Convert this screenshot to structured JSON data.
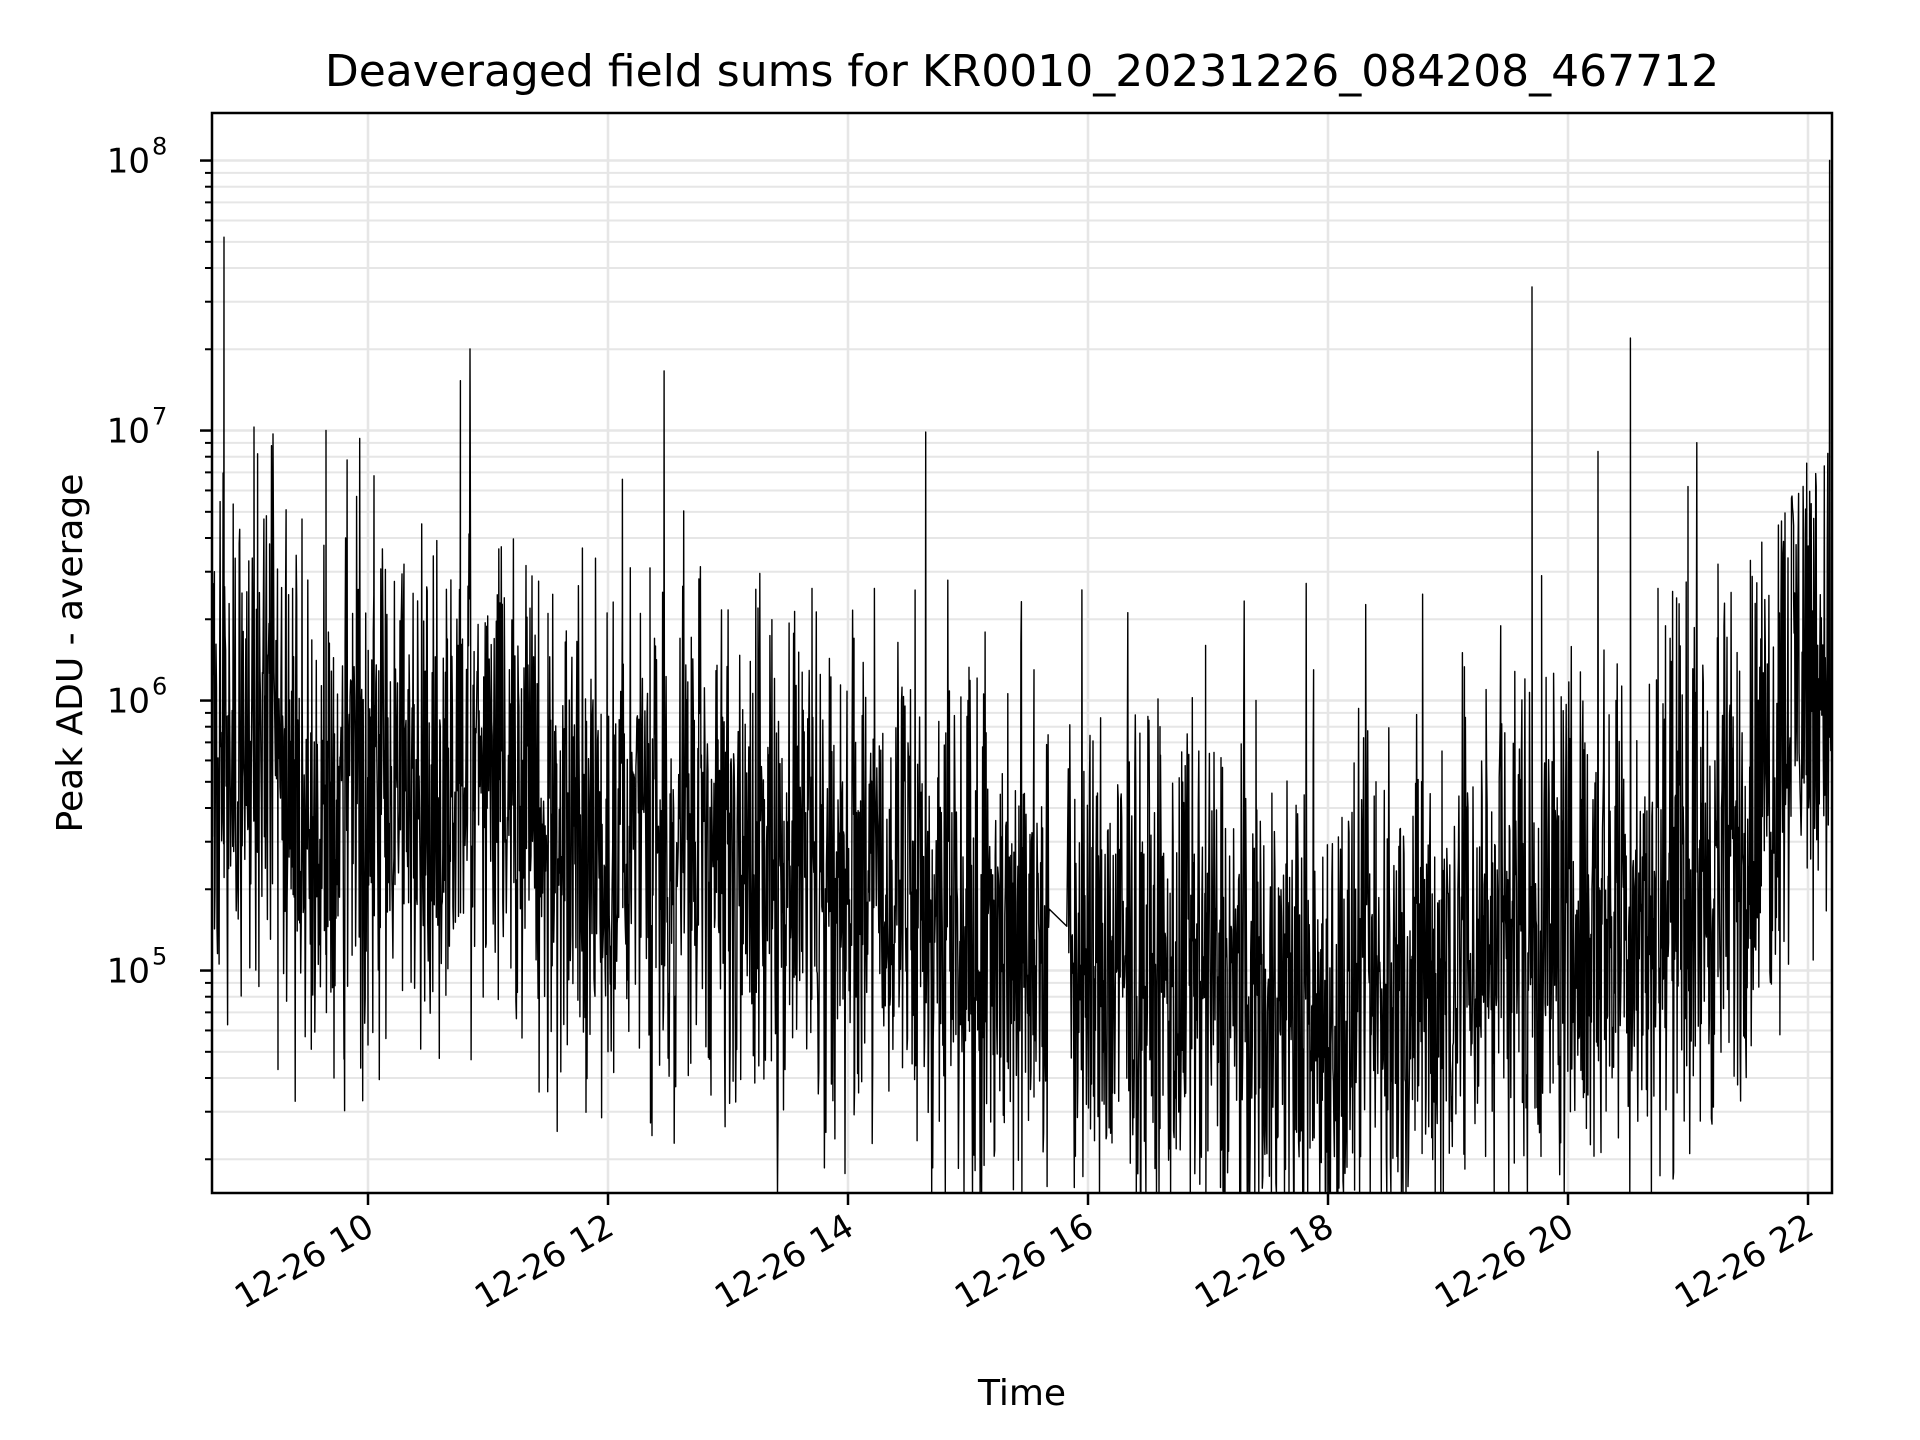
{
  "chart_data": {
    "type": "line",
    "title": "Deaveraged field sums for KR0010_20231226_084208_467712",
    "xlabel": "Time",
    "ylabel": "Peak ADU - average",
    "yscale": "log",
    "grid": true,
    "line_color": "#000000",
    "grid_color": "#e6e6e6",
    "xlim_hours": [
      8.7,
      22.2
    ],
    "ylim": [
      15000,
      150000000
    ],
    "x_ticks": [
      {
        "hour": 10,
        "label": "12-26 10"
      },
      {
        "hour": 12,
        "label": "12-26 12"
      },
      {
        "hour": 14,
        "label": "12-26 14"
      },
      {
        "hour": 16,
        "label": "12-26 16"
      },
      {
        "hour": 18,
        "label": "12-26 18"
      },
      {
        "hour": 20,
        "label": "12-26 20"
      },
      {
        "hour": 22,
        "label": "12-26 22"
      }
    ],
    "y_ticks": [
      {
        "value": 100000,
        "base": "10",
        "exp": "5"
      },
      {
        "value": 1000000,
        "base": "10",
        "exp": "6"
      },
      {
        "value": 10000000,
        "base": "10",
        "exp": "7"
      },
      {
        "value": 100000000,
        "base": "10",
        "exp": "8"
      }
    ],
    "baseline_profile": [
      {
        "hour": 8.7,
        "value": 500000
      },
      {
        "hour": 9.0,
        "value": 850000
      },
      {
        "hour": 9.2,
        "value": 1000000
      },
      {
        "hour": 9.4,
        "value": 450000
      },
      {
        "hour": 10.0,
        "value": 450000
      },
      {
        "hour": 11.2,
        "value": 500000
      },
      {
        "hour": 11.4,
        "value": 300000
      },
      {
        "hour": 12.0,
        "value": 280000
      },
      {
        "hour": 13.0,
        "value": 250000
      },
      {
        "hour": 14.0,
        "value": 220000
      },
      {
        "hour": 15.0,
        "value": 150000
      },
      {
        "hour": 15.5,
        "value": 130000
      },
      {
        "hour": 16.0,
        "value": 100000
      },
      {
        "hour": 17.0,
        "value": 85000
      },
      {
        "hour": 18.0,
        "value": 65000
      },
      {
        "hour": 18.5,
        "value": 70000
      },
      {
        "hour": 19.0,
        "value": 100000
      },
      {
        "hour": 19.5,
        "value": 150000
      },
      {
        "hour": 20.0,
        "value": 150000
      },
      {
        "hour": 20.5,
        "value": 160000
      },
      {
        "hour": 21.0,
        "value": 200000
      },
      {
        "hour": 21.4,
        "value": 250000
      },
      {
        "hour": 21.7,
        "value": 600000
      },
      {
        "hour": 21.9,
        "value": 1400000
      },
      {
        "hour": 22.2,
        "value": 1300000
      }
    ],
    "spikes": [
      {
        "hour": 8.72,
        "value": 3000000
      },
      {
        "hour": 8.8,
        "value": 52000000
      },
      {
        "hour": 8.95,
        "value": 2500000
      },
      {
        "hour": 9.05,
        "value": 10300000
      },
      {
        "hour": 9.08,
        "value": 8200000
      },
      {
        "hour": 9.18,
        "value": 3800000
      },
      {
        "hour": 9.45,
        "value": 4700000
      },
      {
        "hour": 9.65,
        "value": 10000000
      },
      {
        "hour": 10.05,
        "value": 6800000
      },
      {
        "hour": 10.3,
        "value": 3200000
      },
      {
        "hour": 10.77,
        "value": 15300000
      },
      {
        "hour": 11.1,
        "value": 2300000
      },
      {
        "hour": 11.5,
        "value": 2100000
      },
      {
        "hour": 12.12,
        "value": 6600000
      },
      {
        "hour": 12.35,
        "value": 3100000
      },
      {
        "hour": 12.6,
        "value": 1700000
      },
      {
        "hour": 13.25,
        "value": 2200000
      },
      {
        "hour": 13.7,
        "value": 2600000
      },
      {
        "hour": 14.05,
        "value": 1700000
      },
      {
        "hour": 14.22,
        "value": 2600000
      },
      {
        "hour": 15.0,
        "value": 1000000
      },
      {
        "hour": 15.55,
        "value": 1300000
      },
      {
        "hour": 16.6,
        "value": 800000
      },
      {
        "hour": 16.98,
        "value": 1600000
      },
      {
        "hour": 17.4,
        "value": 1000000
      },
      {
        "hour": 17.88,
        "value": 1300000
      },
      {
        "hour": 18.4,
        "value": 500000
      },
      {
        "hour": 18.95,
        "value": 650000
      },
      {
        "hour": 19.7,
        "value": 34000000
      },
      {
        "hour": 19.78,
        "value": 2900000
      },
      {
        "hour": 20.12,
        "value": 700000
      },
      {
        "hour": 20.4,
        "value": 1000000
      },
      {
        "hour": 20.52,
        "value": 22000000
      },
      {
        "hour": 20.75,
        "value": 2600000
      },
      {
        "hour": 21.0,
        "value": 6200000
      },
      {
        "hour": 21.25,
        "value": 3200000
      },
      {
        "hour": 21.52,
        "value": 3300000
      },
      {
        "hour": 21.88,
        "value": 2400000
      },
      {
        "hour": 22.05,
        "value": 3200000
      },
      {
        "hour": 22.18,
        "value": 100000000
      }
    ],
    "dips": [
      {
        "hour": 9.25,
        "value": 43000
      },
      {
        "hour": 9.8,
        "value": 47000
      },
      {
        "hour": 10.0,
        "value": 53000
      },
      {
        "hour": 11.5,
        "value": 40000
      },
      {
        "hour": 12.0,
        "value": 50000
      },
      {
        "hour": 15.55,
        "value": 34000
      },
      {
        "hour": 16.2,
        "value": 23000
      },
      {
        "hour": 16.6,
        "value": 26000
      },
      {
        "hour": 17.85,
        "value": 22000
      },
      {
        "hour": 18.05,
        "value": 25000
      },
      {
        "hour": 19.65,
        "value": 31000
      },
      {
        "hour": 20.02,
        "value": 30000
      },
      {
        "hour": 20.42,
        "value": 24000
      },
      {
        "hour": 21.2,
        "value": 27000
      }
    ],
    "gap_hours": [
      15.68,
      15.82
    ]
  }
}
